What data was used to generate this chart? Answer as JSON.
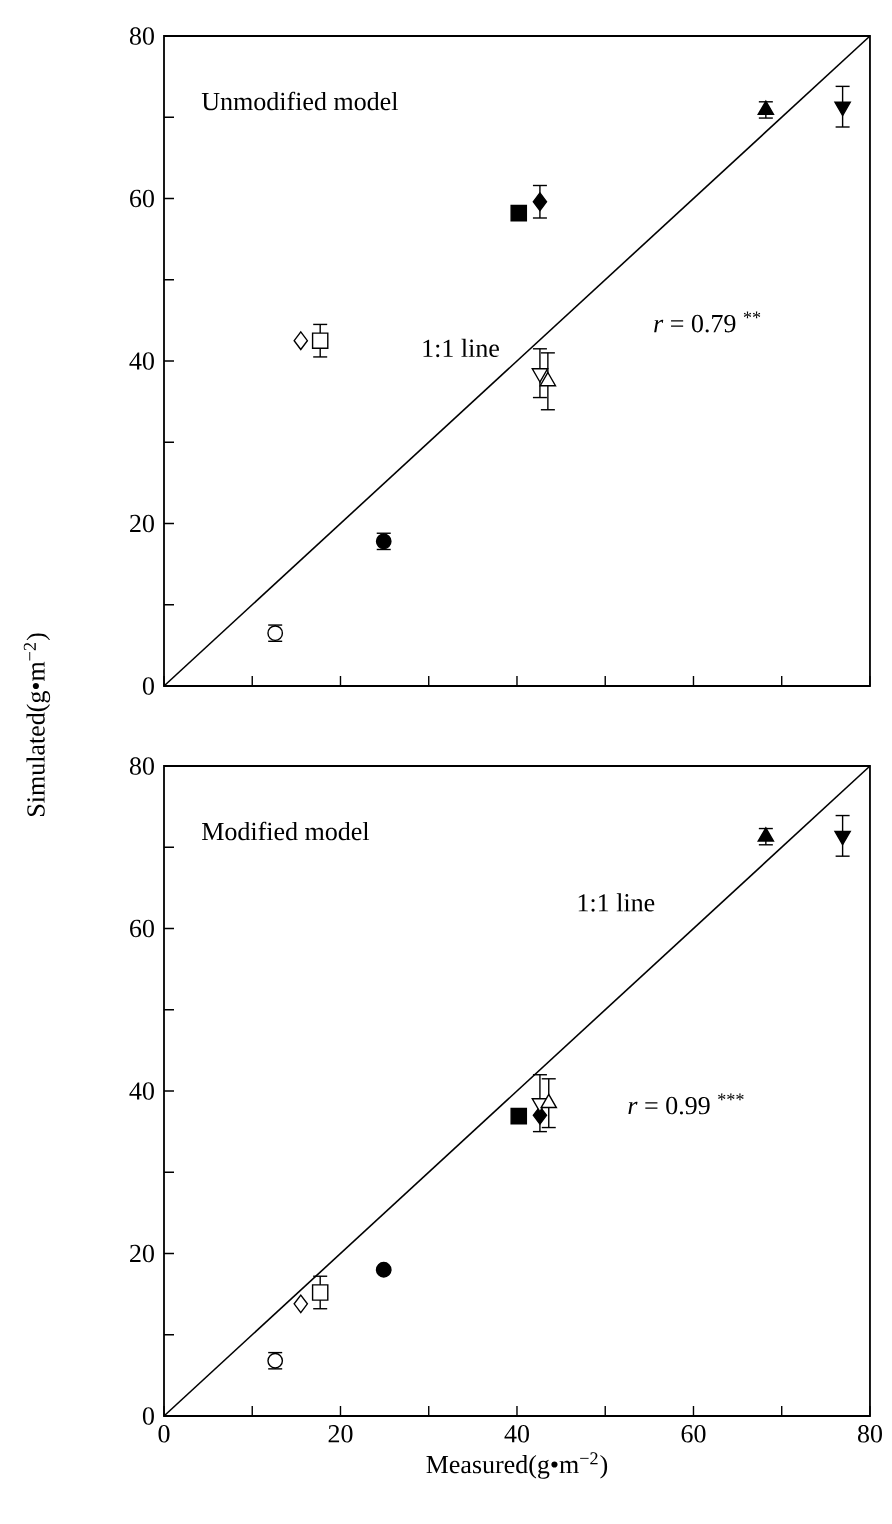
{
  "chart_data": [
    {
      "type": "scatter",
      "title": "Unmodified model",
      "ylabel": "Simulated(g•m$^{−2}$)",
      "xlim": [
        0,
        80
      ],
      "ylim": [
        0,
        80
      ],
      "xticks": [
        0,
        {
          "value": 10,
          "label": null
        },
        20,
        {
          "value": 30,
          "label": null
        },
        40,
        {
          "value": 50,
          "label": null
        },
        60,
        {
          "value": 70,
          "label": null
        },
        80
      ],
      "yticks": [
        0,
        {
          "value": 10,
          "label": null
        },
        20,
        {
          "value": 30,
          "label": null
        },
        40,
        {
          "value": 50,
          "label": null
        },
        60,
        {
          "value": 70,
          "label": null
        },
        80
      ],
      "tick_labels": "y",
      "grid": false,
      "annotations": [
        "1:1 line",
        "*r* = 0.79 $^{**}$"
      ],
      "series": [
        {
          "type": "line",
          "color": "#000000",
          "x": [
            0,
            80
          ],
          "values": [
            0,
            80
          ]
        },
        {
          "marker": "circle",
          "color": "#ffffff",
          "x": [
            12.6
          ],
          "values": [
            6.5
          ],
          "errors": [
            1
          ]
        },
        {
          "marker": "circle",
          "color": "#000000",
          "x": [
            24.9
          ],
          "values": [
            17.8
          ],
          "errors": [
            1
          ]
        },
        {
          "marker": "diamond",
          "color": "#ffffff",
          "x": [
            15.5
          ],
          "values": [
            42.5
          ]
        },
        {
          "marker": "square",
          "color": "#ffffff",
          "x": [
            17.7
          ],
          "values": [
            42.5
          ],
          "errors": [
            2
          ]
        },
        {
          "marker": "square",
          "color": "#000000",
          "x": [
            40.2
          ],
          "values": [
            58.2
          ]
        },
        {
          "marker": "diamond",
          "color": "#000000",
          "x": [
            42.6
          ],
          "values": [
            59.6
          ],
          "errors": [
            2
          ]
        },
        {
          "marker": "triangle-down",
          "color": "#ffffff",
          "x": [
            42.6
          ],
          "values": [
            38.5
          ],
          "errors": [
            3
          ]
        },
        {
          "marker": "triangle",
          "color": "#ffffff",
          "x": [
            43.5
          ],
          "values": [
            37.5
          ],
          "errors": [
            3.5
          ]
        },
        {
          "marker": "triangle",
          "color": "#000000",
          "x": [
            68.2
          ],
          "values": [
            70.9
          ],
          "errors": [
            1
          ]
        },
        {
          "marker": "triangle-down",
          "color": "#000000",
          "x": [
            76.9
          ],
          "values": [
            71.3
          ],
          "errors": [
            2.5
          ]
        }
      ]
    },
    {
      "type": "scatter",
      "title": "Modified model",
      "xlabel": "Measured(g•m$^{−2}$)",
      "xlim": [
        0,
        80
      ],
      "ylim": [
        0,
        80
      ],
      "xticks": [
        0,
        {
          "value": 10,
          "label": null
        },
        20,
        {
          "value": 30,
          "label": null
        },
        40,
        {
          "value": 50,
          "label": null
        },
        60,
        {
          "value": 70,
          "label": null
        },
        80
      ],
      "yticks": [
        0,
        {
          "value": 10,
          "label": null
        },
        20,
        {
          "value": 30,
          "label": null
        },
        40,
        {
          "value": 50,
          "label": null
        },
        60,
        {
          "value": 70,
          "label": null
        },
        80
      ],
      "grid": false,
      "annotations": [
        "1:1 line",
        "*r* = 0.99 $^{***}$"
      ],
      "series": [
        {
          "type": "line",
          "color": "#000000",
          "x": [
            0,
            80
          ],
          "values": [
            0,
            80
          ]
        },
        {
          "marker": "circle",
          "color": "#ffffff",
          "x": [
            12.6
          ],
          "values": [
            6.8
          ],
          "errors": [
            1
          ]
        },
        {
          "marker": "circle",
          "color": "#000000",
          "x": [
            24.9
          ],
          "values": [
            18
          ]
        },
        {
          "marker": "diamond",
          "color": "#ffffff",
          "x": [
            15.5
          ],
          "values": [
            13.8
          ]
        },
        {
          "marker": "square",
          "color": "#ffffff",
          "x": [
            17.7
          ],
          "values": [
            15.2
          ],
          "errors": [
            2
          ]
        },
        {
          "marker": "square",
          "color": "#000000",
          "x": [
            40.2
          ],
          "values": [
            36.9
          ]
        },
        {
          "marker": "diamond",
          "color": "#000000",
          "x": [
            42.6
          ],
          "values": [
            37
          ]
        },
        {
          "marker": "triangle-down",
          "color": "#ffffff",
          "x": [
            42.6
          ],
          "values": [
            38.5
          ],
          "errors": [
            3.5
          ]
        },
        {
          "marker": "triangle",
          "color": "#ffffff",
          "x": [
            43.6
          ],
          "values": [
            38.5
          ],
          "errors": [
            3
          ]
        },
        {
          "marker": "triangle",
          "color": "#000000",
          "x": [
            68.2
          ],
          "values": [
            71.3
          ],
          "errors": [
            1
          ]
        },
        {
          "marker": "triangle-down",
          "color": "#000000",
          "x": [
            76.9
          ],
          "values": [
            71.4
          ],
          "errors": [
            2.5
          ]
        }
      ]
    }
  ]
}
